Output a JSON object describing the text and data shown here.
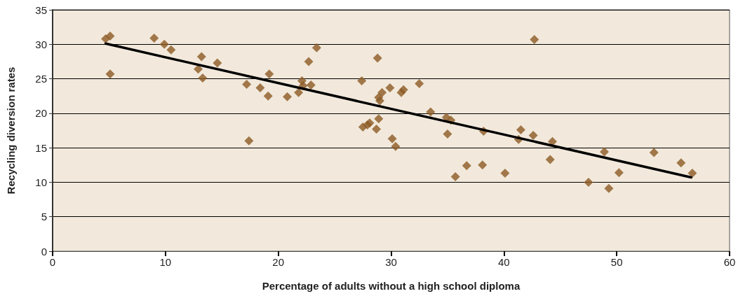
{
  "chart_data": {
    "type": "scatter",
    "xlabel": "Percentage of adults without a high school diploma",
    "ylabel": "Recycling diversion rates",
    "xlim": [
      0,
      60
    ],
    "xticks": [
      0,
      10,
      20,
      30,
      40,
      50,
      60
    ],
    "ylim": [
      0,
      35
    ],
    "yticks": [
      0,
      5,
      10,
      15,
      20,
      25,
      30,
      35
    ],
    "grid": "y",
    "marker": "diamond",
    "series": [
      {
        "color": "#8c5a24",
        "x": [
          4.7,
          5.1,
          5.1,
          9,
          9.9,
          10.5,
          12.9,
          13.2,
          13.3,
          14.6,
          17.2,
          17.4,
          18.4,
          19.1,
          19.2,
          20.8,
          21.8,
          22.1,
          22.2,
          22.7,
          22.9,
          23.4,
          27.4,
          27.5,
          27.9,
          28.1,
          28.7,
          28.8,
          28.9,
          29,
          28.9,
          29.2,
          29.9,
          30.1,
          30.4,
          30.9,
          31.1,
          32.5,
          33.5,
          34.9,
          35.3,
          35,
          35.7,
          36.7,
          38.1,
          38.2,
          40.1,
          41.3,
          41.5,
          42.6,
          42.7,
          44.1,
          44.3,
          47.5,
          48.9,
          49.3,
          50.2,
          53.3,
          55.7,
          56.7
        ],
        "values": [
          30.8,
          31.2,
          25.7,
          30.9,
          30,
          29.2,
          26.4,
          28.2,
          25.1,
          27.3,
          24.2,
          16,
          23.7,
          22.5,
          25.7,
          22.4,
          23,
          24.7,
          24,
          27.5,
          24.1,
          29.5,
          24.7,
          18,
          18.3,
          18.6,
          17.7,
          28,
          22.3,
          21.8,
          19.2,
          23,
          23.7,
          16.3,
          15.2,
          23,
          23.4,
          24.3,
          20.2,
          19.4,
          19,
          17,
          10.8,
          12.4,
          12.5,
          17.4,
          11.3,
          16.2,
          17.6,
          16.8,
          30.7,
          13.3,
          15.9,
          10,
          14.4,
          9.1,
          11.4,
          14.3,
          12.8,
          11.3
        ]
      },
      {
        "type": "line",
        "color": "#000000",
        "line_style": "solid",
        "marker": "none",
        "x": [
          4.7,
          56.6
        ],
        "values": [
          30.1,
          10.7
        ]
      }
    ]
  }
}
